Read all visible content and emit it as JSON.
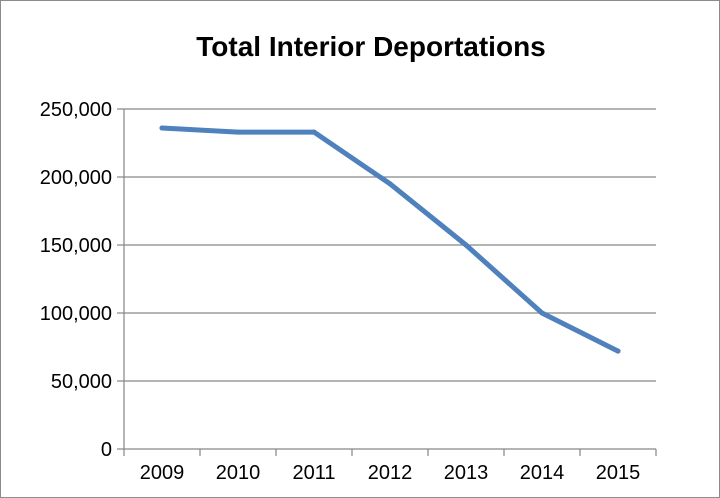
{
  "chart_data": {
    "type": "line",
    "title": "Total Interior Deportations",
    "categories": [
      "2009",
      "2010",
      "2011",
      "2012",
      "2013",
      "2014",
      "2015"
    ],
    "series": [
      {
        "values": [
          236000,
          233000,
          233000,
          195000,
          150000,
          100000,
          72000
        ]
      }
    ],
    "ylim": [
      0,
      250000
    ],
    "yticks": [
      0,
      50000,
      100000,
      150000,
      200000,
      250000
    ],
    "ytick_labels": [
      "0",
      "50,000",
      "100,000",
      "150,000",
      "200,000",
      "250,000"
    ],
    "grid": true,
    "line_color": "#4f81bd",
    "grid_color": "#868686"
  }
}
